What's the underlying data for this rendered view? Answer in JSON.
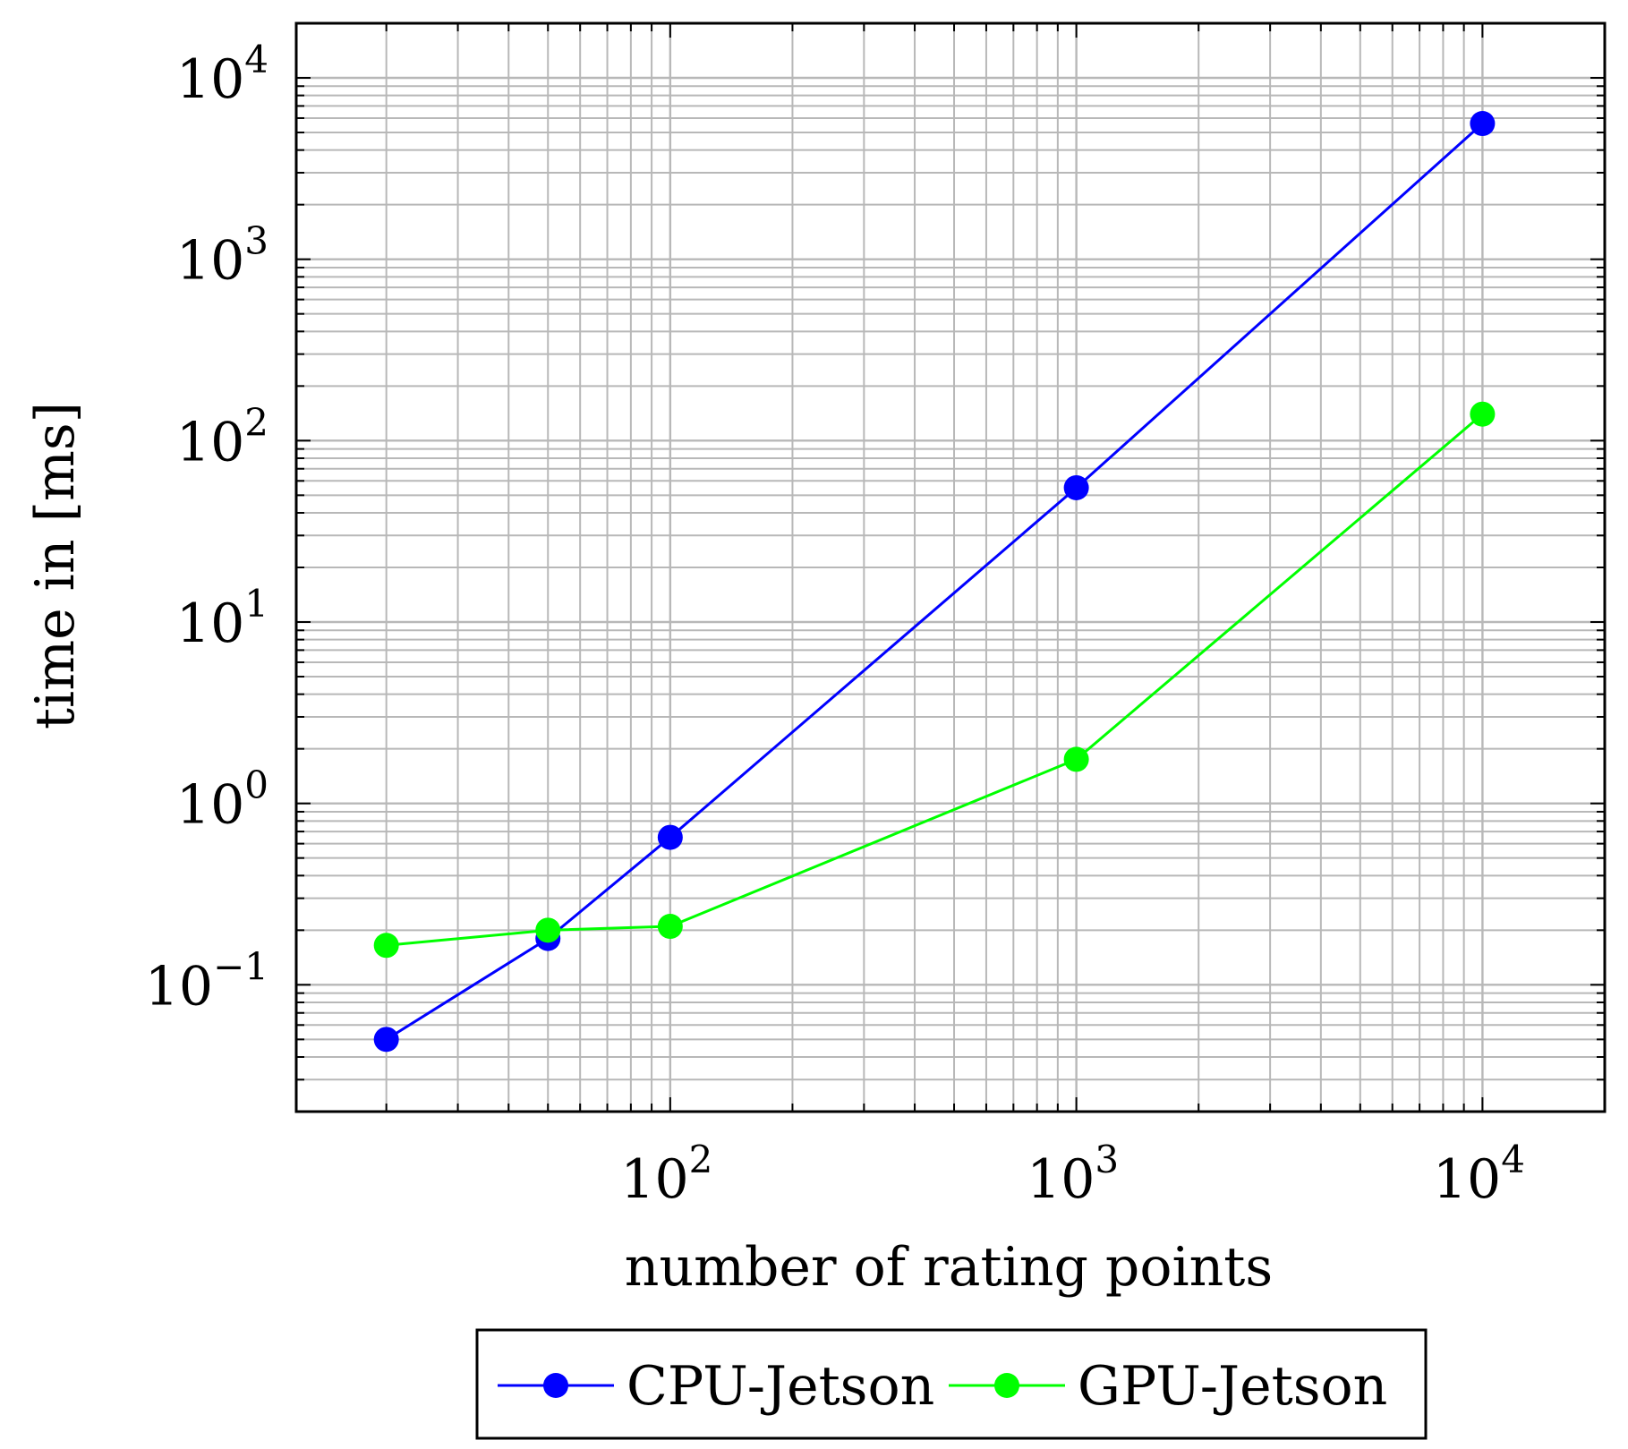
{
  "chart_data": {
    "type": "line",
    "xscale": "log",
    "yscale": "log",
    "xlabel": "number of rating points",
    "ylabel": "time in [ms]",
    "xlim": [
      12,
      20000
    ],
    "ylim": [
      0.02,
      20000
    ],
    "x_ticks": [
      {
        "value": 100,
        "base": "10",
        "exp": "2"
      },
      {
        "value": 1000,
        "base": "10",
        "exp": "3"
      },
      {
        "value": 10000,
        "base": "10",
        "exp": "4"
      }
    ],
    "y_ticks": [
      {
        "value": 0.1,
        "base": "10",
        "exp": "−1"
      },
      {
        "value": 1,
        "base": "10",
        "exp": "0"
      },
      {
        "value": 10,
        "base": "10",
        "exp": "1"
      },
      {
        "value": 100,
        "base": "10",
        "exp": "2"
      },
      {
        "value": 1000,
        "base": "10",
        "exp": "3"
      },
      {
        "value": 10000,
        "base": "10",
        "exp": "4"
      }
    ],
    "grid": true,
    "legend_position": "bottom",
    "series": [
      {
        "name": "CPU-Jetson",
        "color": "#0000ff",
        "points": [
          {
            "x": 20,
            "y": 0.05
          },
          {
            "x": 50,
            "y": 0.18
          },
          {
            "x": 100,
            "y": 0.65
          },
          {
            "x": 1000,
            "y": 55
          },
          {
            "x": 10000,
            "y": 5600
          }
        ]
      },
      {
        "name": "GPU-Jetson",
        "color": "#00ff00",
        "points": [
          {
            "x": 20,
            "y": 0.165
          },
          {
            "x": 50,
            "y": 0.2
          },
          {
            "x": 100,
            "y": 0.21
          },
          {
            "x": 1000,
            "y": 1.75
          },
          {
            "x": 10000,
            "y": 140
          }
        ]
      }
    ]
  }
}
